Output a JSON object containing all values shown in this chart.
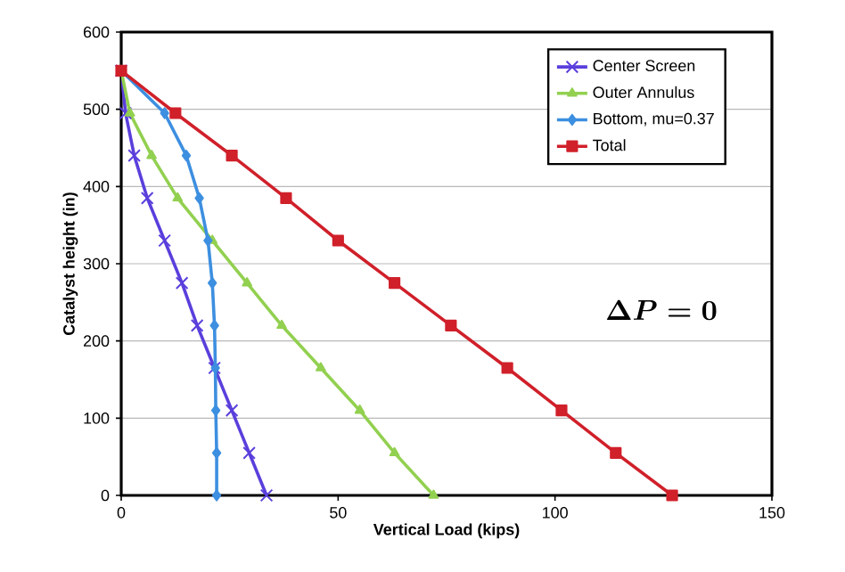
{
  "chart_data": {
    "type": "line",
    "xlabel": "Vertical Load (kips)",
    "ylabel": "Catalyst height (in)",
    "xlim": [
      0,
      150
    ],
    "xticks": [
      0,
      50,
      100,
      150
    ],
    "ylim": [
      0,
      600
    ],
    "yticks": [
      0,
      100,
      200,
      300,
      400,
      500,
      600
    ],
    "grid": "y",
    "legend": "top right",
    "annotations": [
      "\\Delta P = 0"
    ],
    "series": [
      {
        "name": "Center Screen",
        "color": "#5a3fdc",
        "marker": "cross",
        "x": [
          0,
          1,
          3,
          6,
          10,
          14,
          17.5,
          21.5,
          25.5,
          29.5,
          33.5
        ],
        "values": [
          550,
          495,
          440,
          385,
          330,
          275,
          220,
          165,
          110,
          55,
          0
        ]
      },
      {
        "name": "Outer Annulus",
        "color": "#92d050",
        "marker": "triangle",
        "x": [
          0,
          2,
          7,
          13,
          21,
          29,
          37,
          46,
          55,
          63,
          72
        ],
        "values": [
          550,
          495,
          440,
          385,
          330,
          275,
          220,
          165,
          110,
          55,
          0
        ]
      },
      {
        "name": "Bottom, mu=0.37",
        "color": "#3d8fe0",
        "marker": "diamond",
        "x": [
          0,
          10,
          15,
          18,
          20,
          21,
          21.5,
          21.7,
          21.8,
          22,
          22
        ],
        "values": [
          550,
          495,
          440,
          385,
          330,
          275,
          220,
          165,
          110,
          55,
          0
        ]
      },
      {
        "name": "Total",
        "color": "#d0202a",
        "marker": "square",
        "x": [
          0,
          12.5,
          25.5,
          38,
          50,
          63,
          76,
          89,
          101.5,
          114,
          127
        ],
        "values": [
          550,
          495,
          440,
          385,
          330,
          275,
          220,
          165,
          110,
          55,
          0
        ]
      }
    ]
  }
}
